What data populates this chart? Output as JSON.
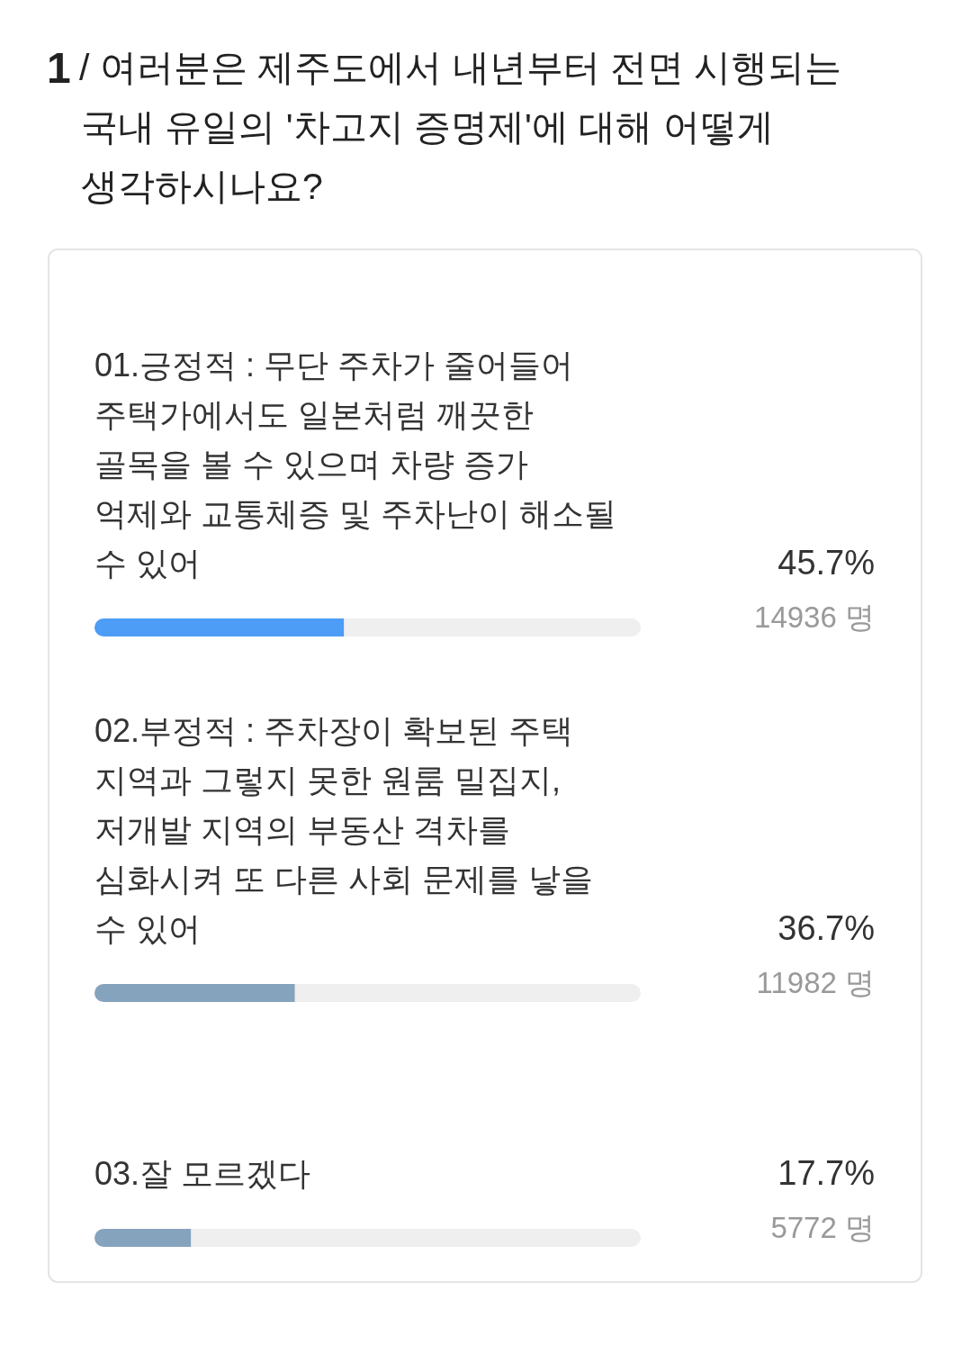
{
  "chart_data": {
    "type": "bar",
    "orientation": "horizontal",
    "stacked": true,
    "title": "1/ 여러분은 제주도에서 내년부터 전면 시행되는 국내 유일의 '차고지 증명제'에 대해 어떻게 생각하시나요?",
    "categories": [
      "01.긍정적 : 무단 주차가 줄어들어 주택가에서도 일본처럼 깨끗한 골목을 볼 수 있으며 차량 증가 억제와 교통체증 및 주차난이 해소될 수 있어",
      "02.부정적 : 주차장이 확보된 주택 지역과 그렇지 못한 원룸 밀집지, 저개발 지역의 부동산 격차를 심화시켜 또 다른 사회 문제를 낳을 수 있어",
      "03.잘 모르겠다"
    ],
    "series": [
      {
        "colors": [
          "#4d9cf6",
          "#86a3bd",
          "#86a3bd"
        ],
        "values": [
          45.7,
          36.7,
          17.7
        ],
        "value_labels": [
          "45.7%",
          "36.7%",
          "17.7%"
        ]
      },
      {
        "color": "#efefef",
        "values": [
          54.3,
          63.3,
          82.3
        ]
      }
    ],
    "xlim": [
      0,
      100
    ],
    "tick_labels": "y",
    "annotations": [
      "14936 명",
      "11982 명",
      "5772 명"
    ]
  }
}
